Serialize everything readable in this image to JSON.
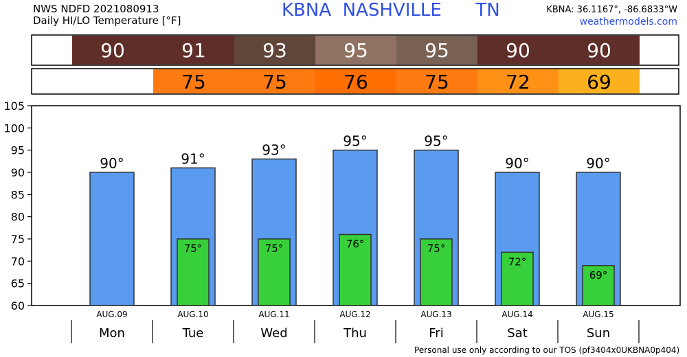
{
  "header": {
    "line1": "NWS NDFD 2021080913",
    "line2": "Daily HI/LO Temperature [°F]",
    "station": "KBNA  NASHVILLE      TN",
    "coords": "KBNA: 36.1167°, -86.6833°W",
    "site": "weathermodels.com"
  },
  "footer": "Personal use only according to our TOS (pf3404x0UKBNA0p404)",
  "colors": {
    "hi_bar": "#5a9bf0",
    "lo_bar": "#38d03a",
    "hi_strip": [
      "#5f2e28",
      "#5f2e28",
      "#604539",
      "#907262",
      "#786052",
      "#5f2e28",
      "#5f2e28"
    ],
    "lo_strip": [
      "",
      "#ff7a10",
      "#ff7a10",
      "#ff6e00",
      "#ff7a10",
      "#ff9116",
      "#fbb11e"
    ]
  },
  "chart_data": {
    "type": "bar",
    "categories": [
      "Mon",
      "Tue",
      "Wed",
      "Thu",
      "Fri",
      "Sat",
      "Sun"
    ],
    "dates": [
      "AUG.09",
      "AUG.10",
      "AUG.11",
      "AUG.12",
      "AUG.13",
      "AUG.14",
      "AUG.15"
    ],
    "series": [
      {
        "values": [
          90,
          91,
          93,
          95,
          95,
          90,
          90
        ],
        "labels": [
          "90°",
          "91°",
          "93°",
          "95°",
          "95°",
          "90°",
          "90°"
        ]
      },
      {
        "values": [
          null,
          75,
          75,
          76,
          75,
          72,
          69
        ],
        "labels": [
          "",
          "75°",
          "75°",
          "76°",
          "75°",
          "72°",
          "69°"
        ]
      }
    ],
    "hi_strip": [
      "90",
      "91",
      "93",
      "95",
      "95",
      "90",
      "90"
    ],
    "lo_strip": [
      "",
      "75",
      "75",
      "76",
      "75",
      "72",
      "69"
    ],
    "yticks": [
      "105",
      "100",
      "95",
      "90",
      "85",
      "80",
      "75",
      "70",
      "65",
      "60"
    ],
    "ylim": [
      60,
      105
    ],
    "grid": false
  }
}
